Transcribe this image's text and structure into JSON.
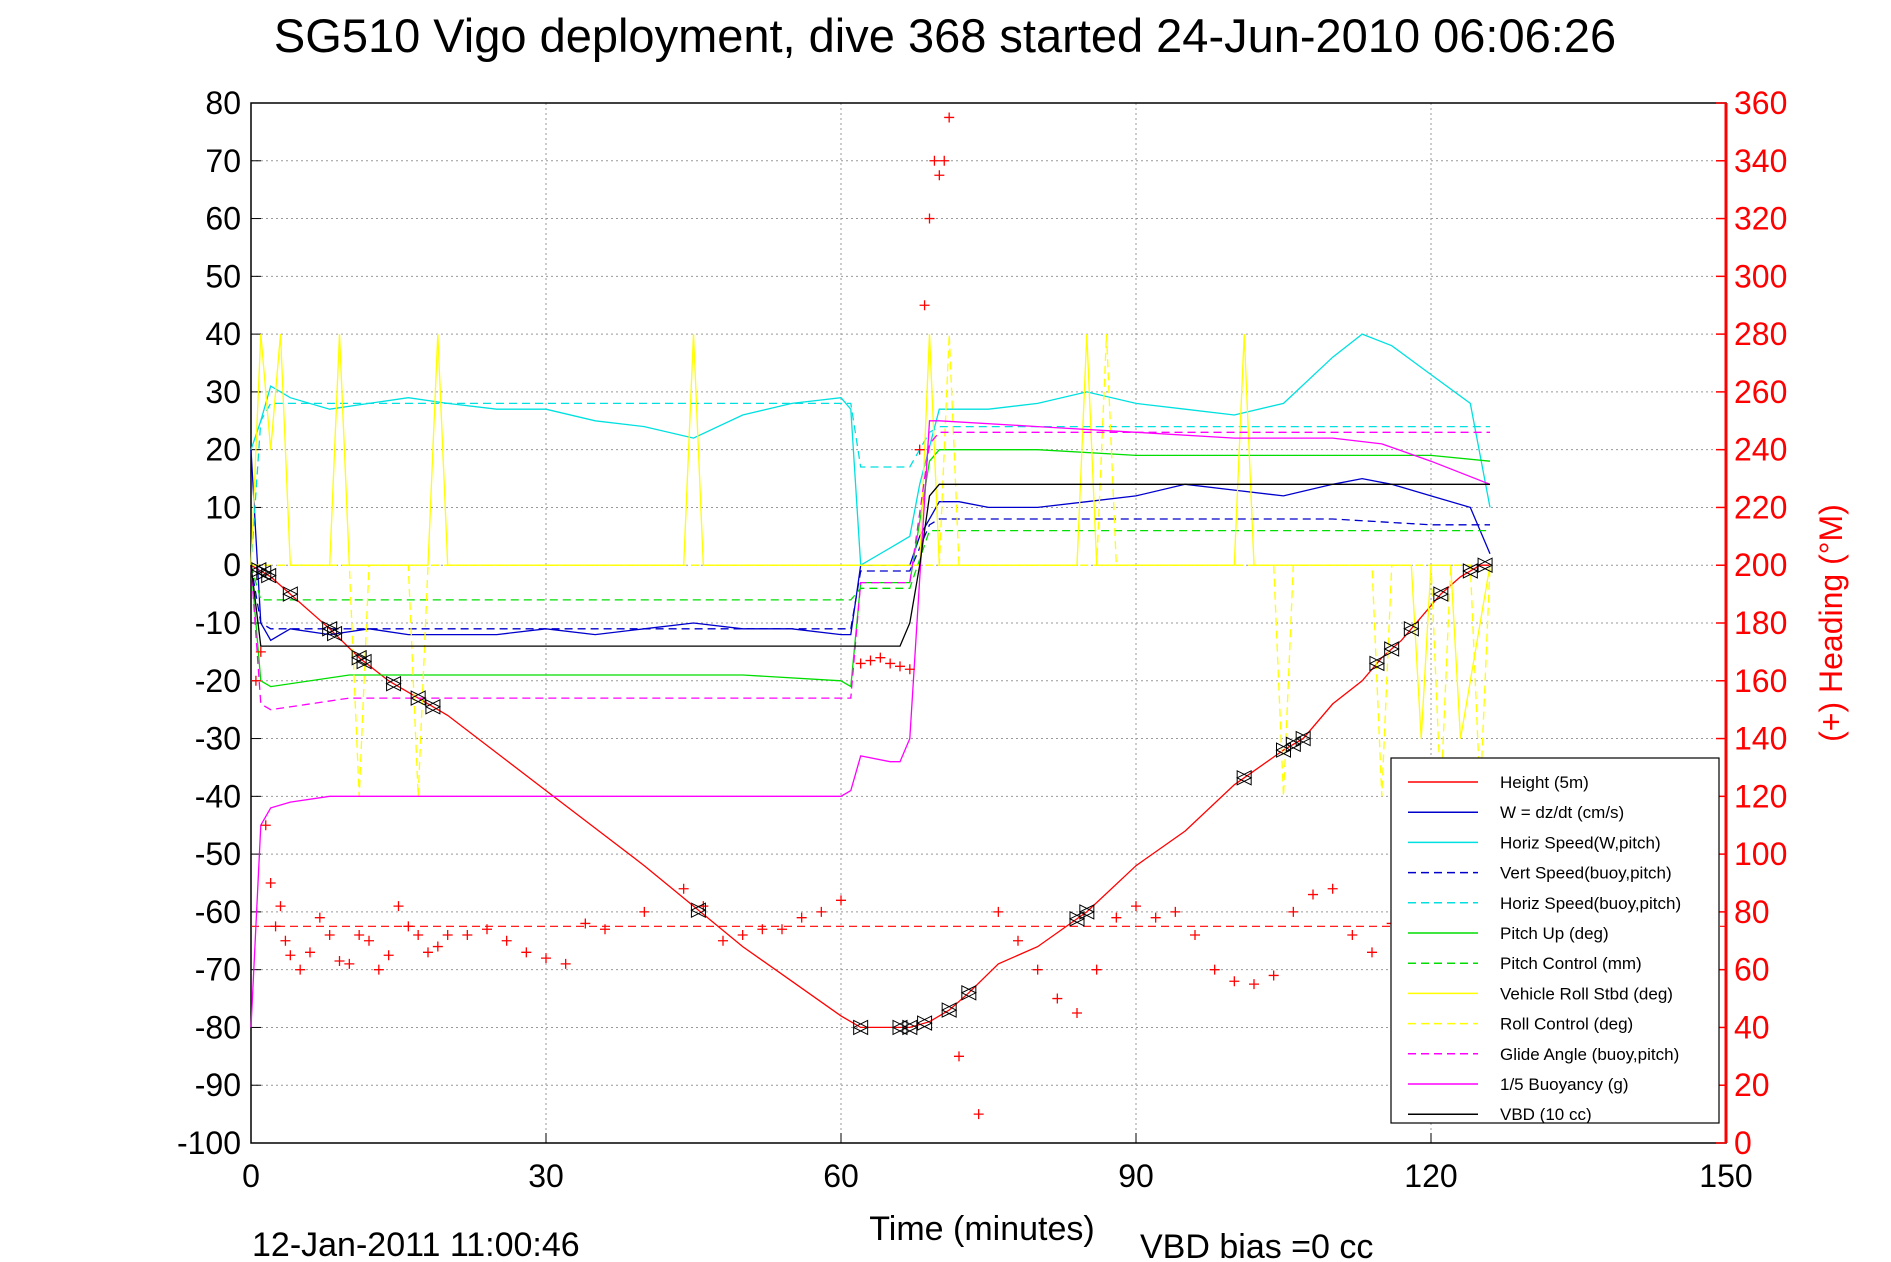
{
  "chart_data": {
    "type": "line",
    "title": "SG510 Vigo deployment, dive 368 started 24-Jun-2010 06:06:26",
    "xlabel": "Time (minutes)",
    "ylabel_left": "",
    "ylabel_right": "(+) Heading (°M)",
    "footer_date": "12-Jan-2011 11:00:46",
    "footer_note": "VBD bias =0 cc",
    "xlim": [
      0,
      150
    ],
    "ylim_left": [
      -100,
      80
    ],
    "ylim_right": [
      0,
      360
    ],
    "x_ticks": [
      "0",
      "30",
      "60",
      "90",
      "120",
      "150"
    ],
    "y_left_ticks": [
      "-100",
      "-90",
      "-80",
      "-70",
      "-60",
      "-50",
      "-40",
      "-30",
      "-20",
      "-10",
      "0",
      "10",
      "20",
      "30",
      "40",
      "50",
      "60",
      "70",
      "80"
    ],
    "y_right_ticks": [
      "0",
      "20",
      "40",
      "60",
      "80",
      "100",
      "120",
      "140",
      "160",
      "180",
      "200",
      "220",
      "240",
      "260",
      "280",
      "300",
      "320",
      "340",
      "360"
    ],
    "grid": true,
    "legend_position": "bottom-right",
    "series": [
      {
        "name": "Height (5m)",
        "color": "#ff0000",
        "style": "solid",
        "x": [
          0,
          1,
          2,
          4,
          8,
          11,
          14,
          17,
          20,
          30,
          40,
          45,
          50,
          55,
          60,
          62,
          65,
          67,
          69,
          71,
          73,
          76,
          80,
          85,
          90,
          95,
          100,
          105,
          107,
          110,
          113,
          115,
          117,
          119,
          121,
          123,
          125,
          126
        ],
        "y": [
          0,
          -1,
          -2,
          -5,
          -11,
          -16,
          -20,
          -23,
          -26,
          -39,
          -52,
          -59,
          -66,
          -72,
          -78,
          -80,
          -80,
          -80,
          -79,
          -77,
          -74,
          -69,
          -66,
          -60,
          -52,
          -46,
          -38,
          -32,
          -30,
          -24,
          -20,
          -16,
          -13,
          -9,
          -5,
          -2,
          0,
          0
        ]
      },
      {
        "name": "W = dz/dt (cm/s)",
        "color": "#0000cc",
        "style": "solid",
        "x": [
          0,
          1,
          2,
          4,
          8,
          12,
          16,
          20,
          25,
          30,
          35,
          40,
          45,
          50,
          55,
          60,
          61,
          62,
          65,
          67,
          68,
          70,
          72,
          75,
          80,
          85,
          90,
          95,
          100,
          105,
          110,
          113,
          116,
          120,
          124,
          126
        ],
        "y": [
          20,
          -10,
          -13,
          -11,
          -12,
          -11,
          -12,
          -12,
          -12,
          -11,
          -12,
          -11,
          -10,
          -11,
          -11,
          -12,
          -12,
          0,
          0,
          0,
          5,
          11,
          11,
          10,
          10,
          11,
          12,
          14,
          13,
          12,
          14,
          15,
          14,
          12,
          10,
          2
        ]
      },
      {
        "name": "Horiz Speed(W,pitch)",
        "color": "#00e0e0",
        "style": "solid",
        "x": [
          0,
          1,
          2,
          4,
          8,
          12,
          16,
          20,
          25,
          30,
          35,
          40,
          45,
          50,
          55,
          60,
          61,
          62,
          65,
          67,
          68,
          70,
          72,
          75,
          80,
          85,
          90,
          95,
          100,
          105,
          110,
          113,
          116,
          120,
          124,
          126
        ],
        "y": [
          20,
          25,
          31,
          29,
          27,
          28,
          29,
          28,
          27,
          27,
          25,
          24,
          22,
          26,
          28,
          29,
          27,
          0,
          3,
          5,
          14,
          27,
          27,
          27,
          28,
          30,
          28,
          27,
          26,
          28,
          36,
          40,
          38,
          33,
          28,
          10
        ]
      },
      {
        "name": "Vert Speed(buoy,pitch)",
        "color": "#0000cc",
        "style": "dashed",
        "x": [
          0,
          1,
          2,
          10,
          20,
          30,
          40,
          50,
          60,
          61,
          62,
          66,
          67,
          69,
          70,
          80,
          90,
          100,
          110,
          120,
          126
        ],
        "y": [
          0,
          -10,
          -11,
          -11,
          -11,
          -11,
          -11,
          -11,
          -11,
          -11,
          -1,
          -1,
          -1,
          7,
          8,
          8,
          8,
          8,
          8,
          7,
          7
        ]
      },
      {
        "name": "Horiz Speed(buoy,pitch)",
        "color": "#00e0e0",
        "style": "dashed",
        "x": [
          0,
          1,
          2,
          10,
          20,
          30,
          40,
          50,
          60,
          61,
          62,
          66,
          67,
          69,
          70,
          80,
          90,
          100,
          110,
          120,
          126
        ],
        "y": [
          0,
          25,
          28,
          28,
          28,
          28,
          28,
          28,
          28,
          28,
          17,
          17,
          17,
          23,
          24,
          24,
          24,
          24,
          24,
          24,
          24
        ]
      },
      {
        "name": "Pitch Up (deg)",
        "color": "#00dd00",
        "style": "solid",
        "x": [
          0,
          1,
          2,
          10,
          20,
          30,
          40,
          50,
          60,
          61,
          62,
          66,
          67,
          69,
          70,
          80,
          90,
          100,
          110,
          120,
          126
        ],
        "y": [
          0,
          -20,
          -21,
          -19,
          -19,
          -19,
          -19,
          -19,
          -20,
          -21,
          -3,
          -3,
          -3,
          18,
          20,
          20,
          19,
          19,
          19,
          19,
          18
        ]
      },
      {
        "name": "Pitch Control (mm)",
        "color": "#00dd00",
        "style": "dashed",
        "x": [
          0,
          1,
          2,
          10,
          20,
          30,
          40,
          50,
          60,
          61,
          62,
          66,
          67,
          69,
          70,
          80,
          90,
          100,
          110,
          120,
          126
        ],
        "y": [
          0,
          -6,
          -6,
          -6,
          -6,
          -6,
          -6,
          -6,
          -6,
          -6,
          -4,
          -4,
          -4,
          6,
          6,
          6,
          6,
          6,
          6,
          6,
          6
        ]
      },
      {
        "name": "Vehicle Roll Stbd (deg)",
        "color": "#ffff00",
        "style": "solid",
        "x": [
          0,
          1,
          2,
          3,
          4,
          8,
          9,
          10,
          11,
          18,
          19,
          20,
          44,
          45,
          46,
          60,
          68,
          69,
          70,
          75,
          80,
          84,
          85,
          86,
          100,
          101,
          102,
          110,
          118,
          119,
          120,
          122,
          123,
          126
        ],
        "y": [
          0,
          40,
          20,
          40,
          0,
          0,
          40,
          0,
          0,
          0,
          40,
          0,
          0,
          40,
          0,
          0,
          0,
          40,
          0,
          0,
          0,
          0,
          40,
          0,
          0,
          40,
          0,
          0,
          0,
          -30,
          0,
          0,
          -30,
          0
        ]
      },
      {
        "name": "Roll Control (deg)",
        "color": "#ffff00",
        "style": "dashed",
        "x": [
          0,
          1,
          2,
          10,
          11,
          12,
          16,
          17,
          18,
          60,
          70,
          71,
          72,
          86,
          87,
          88,
          104,
          105,
          106,
          114,
          115,
          116,
          120,
          121,
          122,
          124,
          125,
          126
        ],
        "y": [
          0,
          0,
          0,
          0,
          -40,
          0,
          0,
          -40,
          0,
          0,
          0,
          40,
          0,
          0,
          40,
          0,
          0,
          -40,
          0,
          0,
          -40,
          0,
          0,
          -40,
          0,
          0,
          -40,
          0
        ]
      },
      {
        "name": "Glide Angle (buoy,pitch)",
        "color": "#ff00ff",
        "style": "dashed",
        "x": [
          0,
          1,
          2,
          10,
          20,
          30,
          40,
          50,
          60,
          61,
          62,
          66,
          67,
          69,
          70,
          80,
          90,
          100,
          110,
          120,
          126
        ],
        "y": [
          0,
          -24,
          -25,
          -23,
          -23,
          -23,
          -23,
          -23,
          -23,
          -23,
          -3,
          -3,
          -3,
          21,
          23,
          23,
          23,
          23,
          23,
          23,
          23
        ]
      },
      {
        "name": "1/5 Buoyancy (g)",
        "color": "#ff00ff",
        "style": "solid",
        "x": [
          0,
          1,
          2,
          4,
          8,
          10,
          15,
          20,
          30,
          40,
          50,
          55,
          60,
          61,
          62,
          65,
          66,
          67,
          69,
          70,
          80,
          90,
          100,
          110,
          115,
          120,
          126
        ],
        "y": [
          -80,
          -45,
          -42,
          -41,
          -40,
          -40,
          -40,
          -40,
          -40,
          -40,
          -40,
          -40,
          -40,
          -39,
          -33,
          -34,
          -34,
          -30,
          25,
          25,
          24,
          23,
          22,
          22,
          21,
          18,
          14
        ]
      },
      {
        "name": "VBD (10 cc)",
        "color": "#000000",
        "style": "solid",
        "x": [
          0,
          1,
          2,
          10,
          20,
          30,
          40,
          50,
          60,
          65,
          66,
          67,
          68,
          69,
          70,
          80,
          90,
          100,
          110,
          120,
          126
        ],
        "y": [
          0,
          -14,
          -14,
          -14,
          -14,
          -14,
          -14,
          -14,
          -14,
          -14,
          -14,
          -10,
          0,
          12,
          14,
          14,
          14,
          14,
          14,
          14,
          14
        ]
      }
    ],
    "heading": {
      "color": "#ff0000",
      "marker": "+",
      "axis": "right",
      "mean": 75,
      "x": [
        0.5,
        1,
        1.5,
        2,
        2.5,
        3,
        3.5,
        4,
        5,
        6,
        7,
        8,
        9,
        10,
        11,
        12,
        13,
        14,
        15,
        16,
        17,
        18,
        19,
        20,
        22,
        24,
        26,
        28,
        30,
        32,
        34,
        36,
        40,
        44,
        46,
        48,
        50,
        52,
        54,
        56,
        58,
        60,
        62,
        63,
        64,
        65,
        66,
        67,
        68,
        68.5,
        69,
        69.5,
        70,
        70.5,
        71,
        72,
        74,
        76,
        78,
        80,
        82,
        84,
        86,
        88,
        90,
        92,
        94,
        96,
        98,
        100,
        102,
        104,
        106,
        108,
        110,
        112,
        114,
        116,
        118
      ],
      "y": [
        160,
        170,
        110,
        90,
        75,
        82,
        70,
        65,
        60,
        66,
        78,
        72,
        63,
        62,
        72,
        70,
        60,
        65,
        82,
        75,
        72,
        66,
        68,
        72,
        72,
        74,
        70,
        66,
        64,
        62,
        76,
        74,
        80,
        88,
        82,
        70,
        72,
        74,
        74,
        78,
        80,
        84,
        166,
        167,
        168,
        166,
        165,
        164,
        240,
        290,
        320,
        340,
        335,
        340,
        355,
        30,
        10,
        80,
        70,
        60,
        50,
        45,
        60,
        78,
        82,
        78,
        80,
        72,
        60,
        56,
        55,
        58,
        80,
        86,
        88,
        72,
        66,
        76,
        100
      ]
    },
    "triangle_markers_x": [
      0.8,
      1.3,
      1.8,
      4,
      8,
      8.5,
      11,
      11.5,
      14.5,
      17,
      18.5,
      45.5,
      62,
      66,
      67,
      68.5,
      71,
      73,
      84,
      85,
      101,
      105,
      106,
      107,
      114.5,
      116,
      118,
      121,
      124,
      125.5
    ]
  }
}
